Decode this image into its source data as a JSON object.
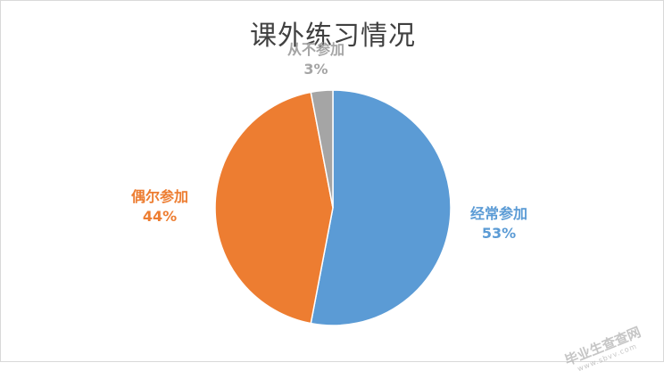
{
  "chart_data": {
    "type": "pie",
    "title": "课外练习情况",
    "categories": [
      "经常参加",
      "偶尔参加",
      "从不参加"
    ],
    "values": [
      53,
      44,
      3
    ],
    "value_labels": [
      "53%",
      "44%",
      "3%"
    ],
    "colors": [
      "#5b9bd5",
      "#ed7d31",
      "#a5a5a5"
    ],
    "label_colors": [
      "#5b9bd5",
      "#ed7d31",
      "#a5a5a5"
    ],
    "legend": "none"
  },
  "watermark": {
    "text": "毕业生查查网",
    "sub": "www.sbvv.com"
  }
}
